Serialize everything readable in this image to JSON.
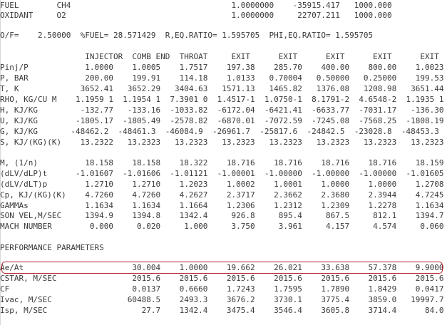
{
  "lines": [
    "FUEL        CH4                                  1.0000000    -35915.417   1000.000",
    "OXIDANT     O2                                   1.0000000     22707.211   1000.000",
    "",
    "O/F=    2.50000  %FUEL= 28.571429  R,EQ.RATIO= 1.595705  PHI,EQ.RATIO= 1.595705",
    "",
    "                  INJECTOR  COMB END  THROAT     EXIT      EXIT      EXIT      EXIT      EXIT",
    "Pinj/P            1.0000    1.0005    1.7517    197.38    285.70    400.00    800.00    1.0023",
    "P, BAR            200.00    199.91    114.18    1.0133   0.70004   0.50000   0.25000    199.53",
    "T, K             3652.41   3652.29   3404.63   1571.13   1465.82   1376.08   1208.98   3651.44",
    "RHO, KG/CU M    1.1959 1  1.1954 1  7.3901 0  1.4517-1  1.0750-1  8.1791-2  4.6548-2  1.1935 1",
    "H, KJ/KG         -132.77   -133.16  -1033.82  -6172.04  -6421.41  -6633.77  -7031.17   -136.30",
    "U, KJ/KG        -1805.17  -1805.49  -2578.82  -6870.01  -7072.59  -7245.08  -7568.25  -1808.19",
    "G, KJ/KG       -48462.2  -48461.3  -46084.9  -26961.7  -25817.6  -24842.5  -23028.8  -48453.3",
    "S, KJ/(KG)(K)    13.2322   13.2323   13.2323   13.2323   13.2323   13.2323   13.2323   13.2323",
    "",
    "M, (1/n)          18.158    18.158    18.322    18.716    18.716    18.716    18.716    18.159",
    "(dLV/dLP)t      -1.01607  -1.01606  -1.01121  -1.00001  -1.00000  -1.00000  -1.00000  -1.01605",
    "(dLV/dLT)p        1.2710    1.2710    1.2023    1.0002    1.0001    1.0000    1.0000    1.2708",
    "Cp, KJ/(KG)(K)    4.7260    4.7260    4.2627    2.3717    2.3662    2.3680    2.3944    4.7245",
    "GAMMAs            1.1634    1.1634    1.1664    1.2306    1.2312    1.2309    1.2278    1.1634",
    "SON VEL,M/SEC     1394.9    1394.8    1342.4     926.8     895.4     867.5     812.1    1394.7",
    "MACH NUMBER        0.000     0.020     1.000     3.750     3.961     4.157     4.574     0.060",
    "",
    "PERFORMANCE PARAMETERS",
    "",
    "Ae/At                       30.004    1.0000    19.662    26.021    33.638    57.378    9.9000",
    "CSTAR, M/SEC                2015.6    2015.6    2015.6    2015.6    2015.6    2015.6    2015.6",
    "CF                          0.0137    0.6660    1.7243    1.7595    1.7890    1.8429    0.0417",
    "Ivac, M/SEC                60488.5    2493.3    3676.2    3730.1    3775.4    3859.0   19997.7",
    "Isp, M/SEC                    27.7    1342.4    3475.4    3546.4    3605.8    3714.4      84.0"
  ],
  "highlight_color": "#b5202b",
  "text_color": "#3a3a3a"
}
